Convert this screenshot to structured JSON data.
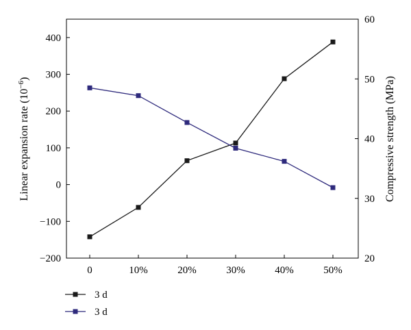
{
  "chart_data": {
    "type": "line",
    "categories": [
      "0",
      "10%",
      "20%",
      "30%",
      "40%",
      "50%"
    ],
    "y_left": {
      "label": "Linear expansion rate (10",
      "label_sup": "−6",
      "label_tail": ")",
      "range": [
        -200,
        450
      ],
      "ticks": [
        -200,
        -100,
        0,
        100,
        200,
        300,
        400
      ],
      "tick_labels": [
        "−200",
        "−100",
        "0",
        "100",
        "200",
        "300",
        "400"
      ]
    },
    "y_right": {
      "label": "Compressive strength (MPa)",
      "range": [
        20,
        60
      ],
      "ticks": [
        20,
        30,
        40,
        50,
        60
      ],
      "tick_labels": [
        "20",
        "30",
        "40",
        "50",
        "60"
      ]
    },
    "series": [
      {
        "name": "3 d",
        "axis": "left",
        "color": "#1a1a1a",
        "values": [
          -142,
          -62,
          65,
          113,
          288,
          388
        ]
      },
      {
        "name": "3 d",
        "axis": "right",
        "color": "#2e2a7c",
        "values": [
          48.5,
          47.2,
          42.7,
          38.4,
          36.2,
          31.8
        ]
      }
    ],
    "grid": false,
    "legend_position": "bottom-left"
  }
}
